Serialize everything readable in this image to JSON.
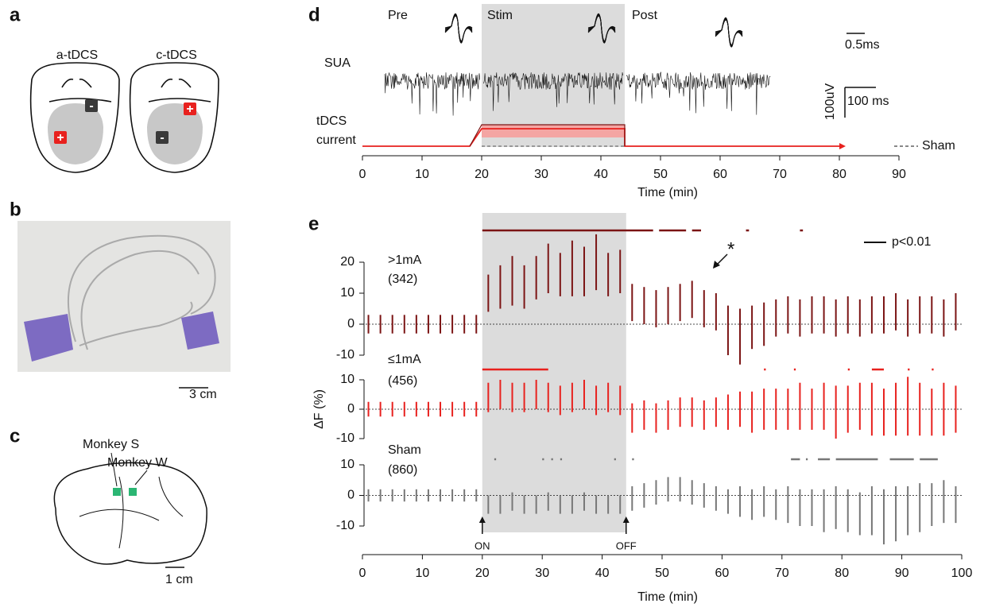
{
  "panel_a": {
    "label": "a",
    "titles": [
      "a-tDCS",
      "c-tDCS"
    ],
    "anode": "+",
    "cathode": "-"
  },
  "panel_b": {
    "label": "b",
    "scale": "3 cm"
  },
  "panel_c": {
    "label": "c",
    "monkeys": [
      "Monkey S",
      "Monkey W"
    ],
    "scale": "1 cm"
  },
  "panel_d": {
    "label": "d",
    "phases": [
      "Pre",
      "Stim",
      "Post"
    ],
    "sua": "SUA",
    "current": [
      "tDCS",
      "current"
    ],
    "scale_spike_time": "0.5ms",
    "scale_amp": "100uV",
    "scale_trace_time": "100 ms",
    "sham": "Sham",
    "xlabel": "Time (min)",
    "xlim": [
      0,
      90
    ],
    "xticks": [
      0,
      10,
      20,
      30,
      40,
      50,
      60,
      70,
      80,
      90
    ],
    "ramp_start": 18,
    "stim_window": [
      20,
      44
    ],
    "trace_end": 80
  },
  "panel_e": {
    "label": "e",
    "xlabel": "Time (min)",
    "ylabel": "ΔF  (%)",
    "xlim": [
      0,
      100
    ],
    "xticks": [
      0,
      10,
      20,
      30,
      40,
      50,
      60,
      70,
      80,
      90,
      100
    ],
    "stim_window": [
      20,
      44
    ],
    "markers": [
      "ON",
      "OFF"
    ],
    "sig_legend": "p<0.01",
    "annotation": "*",
    "x": [
      1,
      3,
      5,
      7,
      9,
      11,
      13,
      15,
      17,
      19,
      21,
      23,
      25,
      27,
      29,
      31,
      33,
      35,
      37,
      39,
      41,
      43,
      45,
      47,
      49,
      51,
      53,
      55,
      57,
      59,
      61,
      63,
      65,
      67,
      69,
      71,
      73,
      75,
      77,
      79,
      81,
      83,
      85,
      87,
      89,
      91,
      93,
      95,
      97,
      99
    ],
    "rows": [
      {
        "name": ">1mA",
        "n": "(342)",
        "color": "#7b1414",
        "ylim": [
          -10,
          20
        ],
        "yticks": [
          20,
          10,
          0,
          -10
        ],
        "values": [
          0,
          0,
          0,
          0,
          0,
          0,
          0,
          0,
          0,
          0,
          10,
          12,
          14,
          12,
          15,
          18,
          16,
          18,
          17,
          20,
          16,
          17,
          7,
          6,
          5,
          6,
          7,
          8,
          5,
          4,
          -2,
          -4,
          -1,
          0,
          2,
          3,
          2,
          3,
          3,
          2,
          3,
          2,
          3,
          3,
          4,
          2,
          3,
          3,
          2,
          4
        ],
        "errors": [
          3,
          3,
          3,
          3,
          3,
          3,
          3,
          3,
          3,
          3,
          6,
          7,
          8,
          7,
          7,
          8,
          7,
          9,
          8,
          9,
          7,
          7,
          6,
          6,
          6,
          6,
          6,
          6,
          6,
          6,
          8,
          9,
          7,
          7,
          6,
          6,
          6,
          6,
          6,
          6,
          6,
          6,
          6,
          6,
          6,
          6,
          6,
          6,
          6,
          6
        ],
        "sig": [
          [
            20,
            48.5
          ],
          [
            49.5,
            54
          ],
          [
            55,
            56.5
          ],
          [
            64,
            64.5
          ],
          [
            73,
            73.5
          ]
        ]
      },
      {
        "name": "≤1mA",
        "n": "(456)",
        "color": "#e8211e",
        "ylim": [
          -10,
          10
        ],
        "yticks": [
          10,
          0,
          -10
        ],
        "values": [
          0,
          0,
          0,
          0,
          0,
          0,
          0,
          0,
          0,
          0,
          4,
          5,
          4,
          4,
          5,
          4,
          3,
          4,
          5,
          3,
          4,
          3,
          -3,
          -2,
          -3,
          -2,
          -1,
          -1,
          -2,
          -1,
          -1,
          0,
          -1,
          0,
          0,
          0,
          1,
          0,
          1,
          -1,
          0,
          1,
          0,
          -1,
          0,
          1,
          0,
          -1,
          0,
          0
        ],
        "errors": [
          2.5,
          2.5,
          2.5,
          2.5,
          2.5,
          2.5,
          2.5,
          2.5,
          2.5,
          2.5,
          5,
          5,
          5,
          5,
          5,
          5,
          5,
          5,
          5,
          5,
          5,
          5,
          5,
          5,
          5,
          5,
          5,
          5,
          5,
          5,
          6,
          6,
          7,
          7,
          7,
          7,
          8,
          7,
          8,
          9,
          8,
          8,
          9,
          8,
          9,
          10,
          9,
          8,
          9,
          8
        ],
        "sig": [
          [
            20,
            31
          ],
          [
            67,
            67.3
          ],
          [
            72,
            72.3
          ],
          [
            81,
            81.3
          ],
          [
            85,
            87
          ],
          [
            91,
            91.3
          ],
          [
            95,
            95.3
          ]
        ]
      },
      {
        "name": "Sham",
        "n": "(860)",
        "color": "#777777",
        "ylim": [
          -10,
          10
        ],
        "yticks": [
          10,
          0,
          -10
        ],
        "values": [
          0,
          0,
          0,
          0,
          0,
          0,
          0,
          0,
          0,
          0,
          -3,
          -3,
          -2,
          -3,
          -3,
          -2,
          -3,
          -3,
          -2,
          -3,
          -3,
          -3,
          -1,
          0,
          1,
          2,
          2,
          1,
          0,
          -1,
          -2,
          -2,
          -3,
          -2,
          -3,
          -3,
          -4,
          -4,
          -5,
          -4,
          -5,
          -6,
          -5,
          -7,
          -6,
          -5,
          -4,
          -3,
          -2,
          -3
        ],
        "errors": [
          2,
          2,
          2,
          2,
          2,
          2,
          2,
          2,
          2,
          2,
          3,
          3,
          3,
          3,
          3,
          3,
          3,
          3,
          3,
          3,
          3,
          3,
          4,
          4,
          4,
          4,
          4,
          4,
          4,
          4,
          4,
          5,
          5,
          5,
          5,
          6,
          6,
          6,
          7,
          7,
          7,
          7,
          8,
          9,
          9,
          8,
          8,
          7,
          7,
          6
        ],
        "sig": [
          [
            22,
            22.3
          ],
          [
            30,
            30.3
          ],
          [
            31.5,
            31.8
          ],
          [
            33,
            33.3
          ],
          [
            42,
            42.3
          ],
          [
            45,
            45.3
          ],
          [
            71.5,
            73
          ],
          [
            74,
            74.3
          ],
          [
            76,
            78
          ],
          [
            79,
            86
          ],
          [
            88,
            92
          ],
          [
            93,
            96
          ]
        ]
      }
    ]
  }
}
